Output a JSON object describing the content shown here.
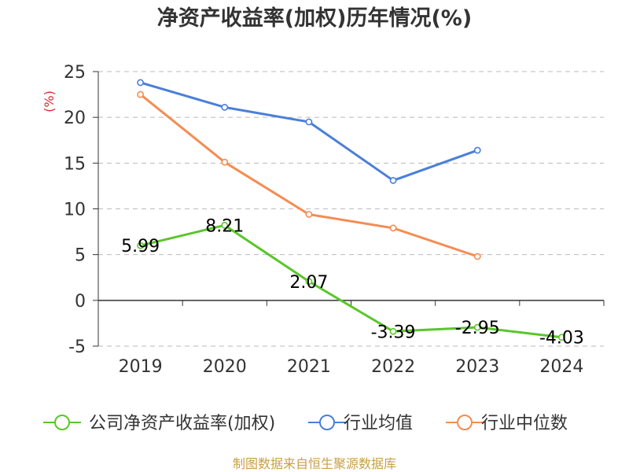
{
  "chart_data": {
    "type": "line",
    "title": "净资产收益率(加权)历年情况(%)",
    "ylabel": "(%)",
    "xlabel": "",
    "categories": [
      "2019",
      "2020",
      "2021",
      "2022",
      "2023",
      "2024"
    ],
    "ylim": [
      -5,
      25
    ],
    "yticks": [
      25,
      20,
      15,
      10,
      5,
      0,
      -5
    ],
    "grid": true,
    "legend_position": "bottom",
    "series": [
      {
        "name": "公司净资产收益率(加权)",
        "color": "#5ac62a",
        "values": [
          5.99,
          8.21,
          2.07,
          -3.39,
          -2.95,
          -4.03
        ],
        "labels": [
          "5.99",
          "8.21",
          "2.07",
          "-3.39",
          "-2.95",
          "-4.03"
        ]
      },
      {
        "name": "行业均值",
        "color": "#4b7fd9",
        "values": [
          23.8,
          21.1,
          19.5,
          13.1,
          16.4,
          null
        ]
      },
      {
        "name": "行业中位数",
        "color": "#f58c52",
        "values": [
          22.5,
          15.1,
          9.4,
          7.9,
          4.8,
          null
        ]
      }
    ],
    "source": "制图数据来自恒生聚源数据库"
  }
}
